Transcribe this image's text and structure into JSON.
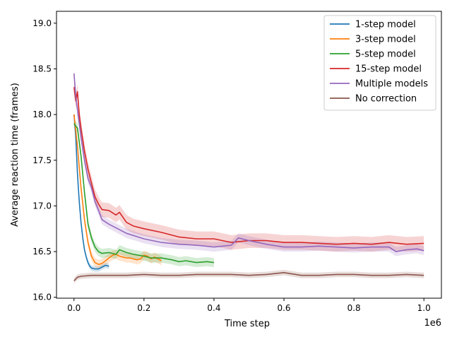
{
  "chart_data": {
    "type": "line",
    "title": "",
    "xlabel": "Time step",
    "ylabel": "Average reaction time (frames)",
    "x_offset_label": "1e6",
    "xlim": [
      -50000,
      1050000
    ],
    "ylim": [
      15.99,
      19.13
    ],
    "xticks": [
      0,
      200000,
      400000,
      600000,
      800000,
      1000000
    ],
    "xtick_labels": [
      "0.0",
      "0.2",
      "0.4",
      "0.6",
      "0.8",
      "1.0"
    ],
    "yticks": [
      16.0,
      16.5,
      17.0,
      17.5,
      18.0,
      18.5,
      19.0
    ],
    "ytick_labels": [
      "16.0",
      "16.5",
      "17.0",
      "17.5",
      "18.0",
      "18.5",
      "19.0"
    ],
    "grid": false,
    "legend_position": "top-right",
    "series": [
      {
        "name": "1-step model",
        "color": "#1f77b4",
        "band": 0.03,
        "points": [
          [
            0,
            18.0
          ],
          [
            5000,
            17.75
          ],
          [
            10000,
            17.35
          ],
          [
            15000,
            17.05
          ],
          [
            20000,
            16.82
          ],
          [
            25000,
            16.65
          ],
          [
            30000,
            16.52
          ],
          [
            35000,
            16.44
          ],
          [
            40000,
            16.38
          ],
          [
            45000,
            16.34
          ],
          [
            50000,
            16.32
          ],
          [
            60000,
            16.31
          ],
          [
            70000,
            16.31
          ],
          [
            80000,
            16.33
          ],
          [
            90000,
            16.35
          ],
          [
            100000,
            16.34
          ]
        ]
      },
      {
        "name": "3-step model",
        "color": "#ff7f0e",
        "band": 0.05,
        "points": [
          [
            0,
            18.0
          ],
          [
            10000,
            17.65
          ],
          [
            20000,
            17.2
          ],
          [
            30000,
            16.85
          ],
          [
            40000,
            16.6
          ],
          [
            50000,
            16.45
          ],
          [
            60000,
            16.38
          ],
          [
            70000,
            16.36
          ],
          [
            80000,
            16.37
          ],
          [
            90000,
            16.4
          ],
          [
            100000,
            16.43
          ],
          [
            110000,
            16.46
          ],
          [
            120000,
            16.47
          ],
          [
            130000,
            16.45
          ],
          [
            140000,
            16.44
          ],
          [
            150000,
            16.43
          ],
          [
            160000,
            16.43
          ],
          [
            170000,
            16.42
          ],
          [
            180000,
            16.41
          ],
          [
            190000,
            16.42
          ],
          [
            200000,
            16.46
          ],
          [
            210000,
            16.45
          ],
          [
            220000,
            16.42
          ],
          [
            230000,
            16.44
          ],
          [
            240000,
            16.42
          ],
          [
            250000,
            16.4
          ]
        ]
      },
      {
        "name": "5-step model",
        "color": "#2ca02c",
        "band": 0.05,
        "points": [
          [
            0,
            17.9
          ],
          [
            10000,
            17.85
          ],
          [
            20000,
            17.55
          ],
          [
            30000,
            17.15
          ],
          [
            40000,
            16.8
          ],
          [
            50000,
            16.65
          ],
          [
            60000,
            16.55
          ],
          [
            70000,
            16.5
          ],
          [
            80000,
            16.48
          ],
          [
            100000,
            16.49
          ],
          [
            120000,
            16.47
          ],
          [
            130000,
            16.52
          ],
          [
            150000,
            16.49
          ],
          [
            170000,
            16.47
          ],
          [
            200000,
            16.45
          ],
          [
            220000,
            16.43
          ],
          [
            250000,
            16.43
          ],
          [
            280000,
            16.41
          ],
          [
            300000,
            16.39
          ],
          [
            320000,
            16.4
          ],
          [
            350000,
            16.38
          ],
          [
            380000,
            16.39
          ],
          [
            400000,
            16.38
          ]
        ]
      },
      {
        "name": "15-step model",
        "color": "#d62728",
        "band": 0.08,
        "points": [
          [
            0,
            18.3
          ],
          [
            5000,
            18.15
          ],
          [
            10000,
            18.25
          ],
          [
            15000,
            18.0
          ],
          [
            20000,
            17.85
          ],
          [
            30000,
            17.6
          ],
          [
            40000,
            17.4
          ],
          [
            50000,
            17.25
          ],
          [
            60000,
            17.1
          ],
          [
            70000,
            17.02
          ],
          [
            80000,
            16.96
          ],
          [
            100000,
            16.95
          ],
          [
            120000,
            16.9
          ],
          [
            130000,
            16.93
          ],
          [
            150000,
            16.82
          ],
          [
            170000,
            16.78
          ],
          [
            200000,
            16.75
          ],
          [
            250000,
            16.71
          ],
          [
            300000,
            16.66
          ],
          [
            350000,
            16.64
          ],
          [
            400000,
            16.64
          ],
          [
            450000,
            16.6
          ],
          [
            500000,
            16.62
          ],
          [
            550000,
            16.62
          ],
          [
            600000,
            16.6
          ],
          [
            650000,
            16.6
          ],
          [
            700000,
            16.59
          ],
          [
            750000,
            16.58
          ],
          [
            800000,
            16.59
          ],
          [
            850000,
            16.58
          ],
          [
            900000,
            16.6
          ],
          [
            950000,
            16.58
          ],
          [
            1000000,
            16.59
          ]
        ]
      },
      {
        "name": "Multiple models",
        "color": "#9467bd",
        "band": 0.05,
        "points": [
          [
            0,
            18.45
          ],
          [
            5000,
            18.2
          ],
          [
            10000,
            18.05
          ],
          [
            20000,
            17.75
          ],
          [
            30000,
            17.5
          ],
          [
            40000,
            17.3
          ],
          [
            50000,
            17.2
          ],
          [
            60000,
            17.05
          ],
          [
            70000,
            16.95
          ],
          [
            80000,
            16.85
          ],
          [
            100000,
            16.8
          ],
          [
            120000,
            16.76
          ],
          [
            150000,
            16.7
          ],
          [
            200000,
            16.64
          ],
          [
            250000,
            16.6
          ],
          [
            300000,
            16.58
          ],
          [
            350000,
            16.57
          ],
          [
            400000,
            16.55
          ],
          [
            450000,
            16.57
          ],
          [
            470000,
            16.65
          ],
          [
            500000,
            16.62
          ],
          [
            550000,
            16.58
          ],
          [
            600000,
            16.55
          ],
          [
            650000,
            16.55
          ],
          [
            700000,
            16.56
          ],
          [
            750000,
            16.55
          ],
          [
            800000,
            16.54
          ],
          [
            850000,
            16.55
          ],
          [
            900000,
            16.55
          ],
          [
            920000,
            16.5
          ],
          [
            950000,
            16.52
          ],
          [
            980000,
            16.53
          ],
          [
            1000000,
            16.51
          ]
        ]
      },
      {
        "name": "No correction",
        "color": "#8c564b",
        "band": 0.03,
        "points": [
          [
            0,
            16.18
          ],
          [
            10000,
            16.22
          ],
          [
            20000,
            16.23
          ],
          [
            50000,
            16.24
          ],
          [
            100000,
            16.24
          ],
          [
            150000,
            16.24
          ],
          [
            200000,
            16.25
          ],
          [
            250000,
            16.24
          ],
          [
            300000,
            16.24
          ],
          [
            350000,
            16.25
          ],
          [
            400000,
            16.25
          ],
          [
            450000,
            16.25
          ],
          [
            500000,
            16.24
          ],
          [
            550000,
            16.25
          ],
          [
            600000,
            16.27
          ],
          [
            650000,
            16.24
          ],
          [
            700000,
            16.24
          ],
          [
            750000,
            16.25
          ],
          [
            800000,
            16.25
          ],
          [
            850000,
            16.24
          ],
          [
            900000,
            16.24
          ],
          [
            950000,
            16.25
          ],
          [
            1000000,
            16.24
          ]
        ]
      }
    ]
  }
}
